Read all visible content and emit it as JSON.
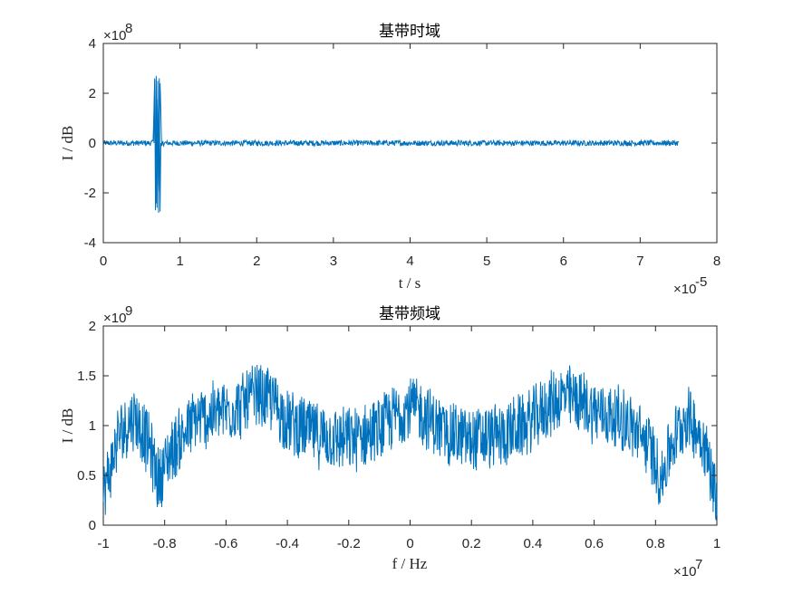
{
  "chart_data": [
    {
      "type": "line",
      "title": "基带时域",
      "xlabel": "t / s",
      "ylabel": "I / dB",
      "x_multiplier": "×10",
      "x_exponent": "-5",
      "y_multiplier": "×10",
      "y_exponent": "8",
      "xlim": [
        0,
        8
      ],
      "ylim": [
        -4,
        4
      ],
      "xticks": [
        "0",
        "1",
        "2",
        "3",
        "4",
        "5",
        "6",
        "7",
        "8"
      ],
      "yticks": [
        "-4",
        "-2",
        "0",
        "2",
        "4"
      ],
      "grid": false,
      "series_color": "#0072BD",
      "series": [
        {
          "x": [
            0,
            0.5,
            0.55,
            0.65,
            0.67,
            0.69,
            0.71,
            0.72,
            0.74,
            0.76,
            0.9,
            2,
            3,
            4,
            5,
            6,
            7,
            7.5
          ],
          "y": [
            0,
            0.05,
            -0.05,
            0.1,
            2.6,
            -2.7,
            2.5,
            -2.8,
            2.6,
            -0.1,
            0.05,
            0,
            0,
            0,
            0,
            0,
            0,
            0
          ]
        }
      ]
    },
    {
      "type": "line",
      "title": "基带频域",
      "xlabel": "f / Hz",
      "ylabel": "I / dB",
      "x_multiplier": "×10",
      "x_exponent": "7",
      "y_multiplier": "×10",
      "y_exponent": "9",
      "xlim": [
        -1,
        1
      ],
      "ylim": [
        0,
        2
      ],
      "xticks": [
        "-1",
        "-0.8",
        "-0.6",
        "-0.4",
        "-0.2",
        "0",
        "0.2",
        "0.4",
        "0.6",
        "0.8",
        "1"
      ],
      "yticks": [
        "0",
        "0.5",
        "1",
        "1.5",
        "2"
      ],
      "grid": false,
      "series_color": "#0072BD",
      "series": [
        {
          "x": [
            -1,
            -0.95,
            -0.9,
            -0.85,
            -0.82,
            -0.78,
            -0.7,
            -0.6,
            -0.55,
            -0.5,
            -0.45,
            -0.4,
            -0.3,
            -0.2,
            -0.1,
            -0.05,
            0,
            0.05,
            0.1,
            0.2,
            0.3,
            0.4,
            0.45,
            0.5,
            0.55,
            0.6,
            0.7,
            0.78,
            0.82,
            0.85,
            0.9,
            0.95,
            1
          ],
          "y": [
            0.3,
            0.9,
            1.1,
            0.8,
            0.45,
            0.75,
            1.05,
            1.15,
            1.2,
            1.3,
            1.25,
            1.05,
            0.9,
            0.85,
            0.95,
            1.1,
            1.2,
            1.1,
            0.95,
            0.85,
            0.9,
            1.05,
            1.2,
            1.3,
            1.25,
            1.15,
            1.05,
            0.8,
            0.45,
            0.8,
            1.1,
            0.9,
            0.3
          ]
        }
      ]
    }
  ]
}
